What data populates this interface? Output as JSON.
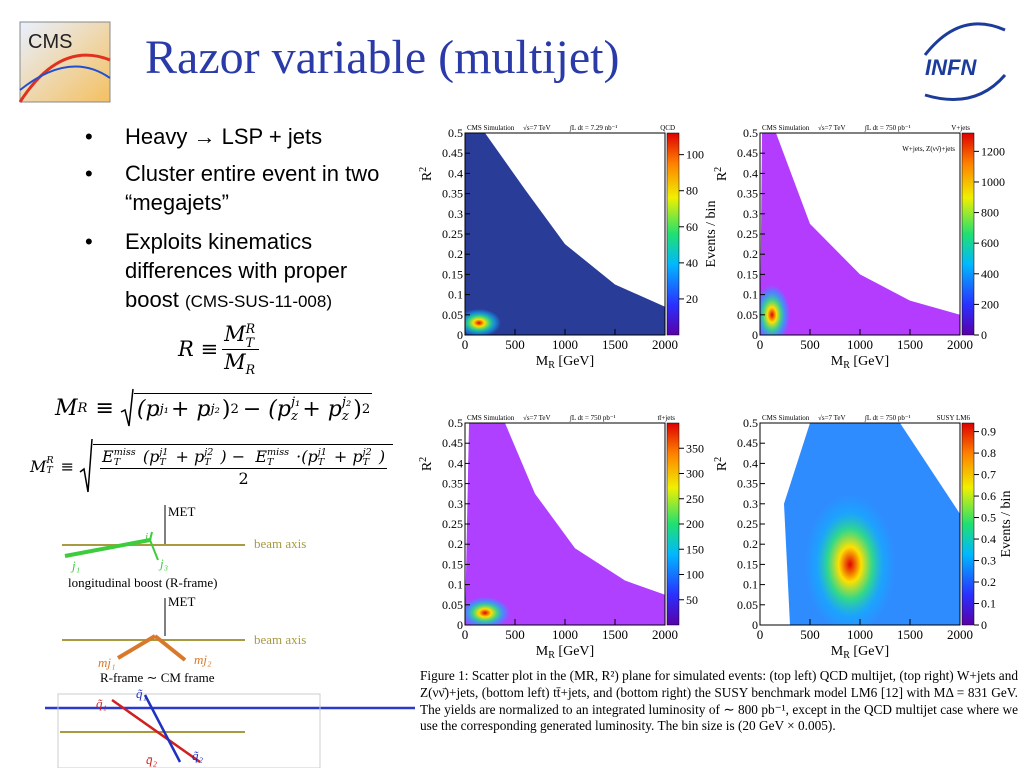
{
  "header": {
    "title": "Razor variable (multijet)"
  },
  "logos": {
    "cms": "CMS",
    "infn": "INFN"
  },
  "bullets": [
    {
      "text": "Heavy → LSP + jets"
    },
    {
      "text": "Cluster entire event in two “megajets”"
    },
    {
      "text": "Exploits kinematics differences with proper boost",
      "ref": "(CMS-SUS-11-008)"
    }
  ],
  "formulas": [
    [
      "R ≡",
      "M",
      "R",
      "T",
      "M",
      "R"
    ],
    [
      "M",
      "R",
      "≡",
      "(p",
      "j₁",
      "+ p",
      "j₂",
      ")",
      "2",
      "− (p",
      "j₁",
      "z",
      "+ p",
      "j₂",
      "z",
      ")",
      "2"
    ],
    [
      "M",
      "R",
      "T",
      "≡",
      "E",
      "miss",
      "T",
      "(p",
      "j1",
      "T",
      "+ p",
      "j2",
      "T",
      ") − ",
      "E",
      "miss",
      "T",
      "·(p",
      "j1",
      "T",
      "+ p",
      "j2",
      "T",
      ")",
      "2"
    ]
  ],
  "diagram": {
    "met1": "MET",
    "beam1": "beam axis",
    "j1": "j₁",
    "j2": "j₂",
    "j3": "j₃",
    "caption1": "longitudinal boost (R-frame)",
    "met2": "MET",
    "beam2": "beam axis",
    "mj1": "mj₁",
    "mj2": "mj₂",
    "caption2": "R-frame ∼ CM frame",
    "q1a": "q̃₁",
    "q1b": "q̃₁",
    "q2a": "q̄₂",
    "q2b": "q̃₂"
  },
  "plots": [
    {
      "sim": "CMS Simulation",
      "energy": "√s=7 TeV",
      "lumi": "∫L dt = 7.29 nb⁻¹",
      "process": "QCD",
      "xlabel": [
        "M",
        "R",
        " [GeV]"
      ],
      "ylabel": [
        "R",
        "2"
      ],
      "xlim": [
        0,
        2000
      ],
      "xticks": [
        0,
        500,
        1000,
        1500,
        2000
      ],
      "ylim": [
        0,
        0.5
      ],
      "yticks": [
        0,
        0.05,
        0.1,
        0.15,
        0.2,
        0.25,
        0.3,
        0.35,
        0.4,
        0.45,
        0.5
      ],
      "clim": [
        0,
        112
      ],
      "cticks": [
        20,
        40,
        60,
        80,
        100
      ],
      "clabel": "Events / bin"
    },
    {
      "sim": "CMS Simulation",
      "energy": "√s=7 TeV",
      "lumi": "∫L dt = 750 pb⁻¹",
      "process": "V+jets",
      "legend": "W+jets, Z(νν̄)+jets",
      "xlabel": [
        "M",
        "R",
        " [GeV]"
      ],
      "ylabel": [
        "R",
        "2"
      ],
      "xlim": [
        0,
        2000
      ],
      "xticks": [
        0,
        500,
        1000,
        1500,
        2000
      ],
      "ylim": [
        0,
        0.5
      ],
      "yticks": [
        0,
        0.05,
        0.1,
        0.15,
        0.2,
        0.25,
        0.3,
        0.35,
        0.4,
        0.45,
        0.5
      ],
      "clim": [
        0,
        1320
      ],
      "cticks": [
        0,
        200,
        400,
        600,
        800,
        1000,
        1200
      ]
    },
    {
      "sim": "CMS Simulation",
      "energy": "√s=7 TeV",
      "lumi": "∫L dt = 750 pb⁻¹",
      "process": "tt̄+jets",
      "xlabel": [
        "M",
        "R",
        " [GeV]"
      ],
      "ylabel": [
        "R",
        "2"
      ],
      "xlim": [
        0,
        2000
      ],
      "xticks": [
        0,
        500,
        1000,
        1500,
        2000
      ],
      "ylim": [
        0,
        0.5
      ],
      "yticks": [
        0,
        0.05,
        0.1,
        0.15,
        0.2,
        0.25,
        0.3,
        0.35,
        0.4,
        0.45,
        0.5
      ],
      "clim": [
        0,
        400
      ],
      "cticks": [
        50,
        100,
        150,
        200,
        250,
        300,
        350
      ]
    },
    {
      "sim": "CMS Simulation",
      "energy": "√s=7 TeV",
      "lumi": "∫L dt = 750 pb⁻¹",
      "process": "SUSY LM6",
      "xlabel": [
        "M",
        "R",
        " [GeV]"
      ],
      "ylabel": [
        "R",
        "2"
      ],
      "xlim": [
        0,
        2000
      ],
      "xticks": [
        0,
        500,
        1000,
        1500,
        2000
      ],
      "ylim": [
        0,
        0.5
      ],
      "yticks": [
        0,
        0.05,
        0.1,
        0.15,
        0.2,
        0.25,
        0.3,
        0.35,
        0.4,
        0.45,
        0.5
      ],
      "clim": [
        0,
        0.94
      ],
      "cticks": [
        0,
        0.1,
        0.2,
        0.3,
        0.4,
        0.5,
        0.6,
        0.7,
        0.8,
        0.9
      ],
      "clabel": "Events / bin"
    }
  ],
  "caption": "Figure 1: Scatter plot in the (MR, R²) plane for simulated events: (top left) QCD multijet, (top right) W+jets and Z(νν̄)+jets, (bottom left) tt̄+jets, and (bottom right) the SUSY benchmark model LM6 [12] with MΔ = 831 GeV. The yields are normalized to an integrated luminosity of ∼ 800 pb⁻¹, except in the QCD multijet case where we use the corresponding generated luminosity. The bin size is (20 GeV × 0.005)."
}
